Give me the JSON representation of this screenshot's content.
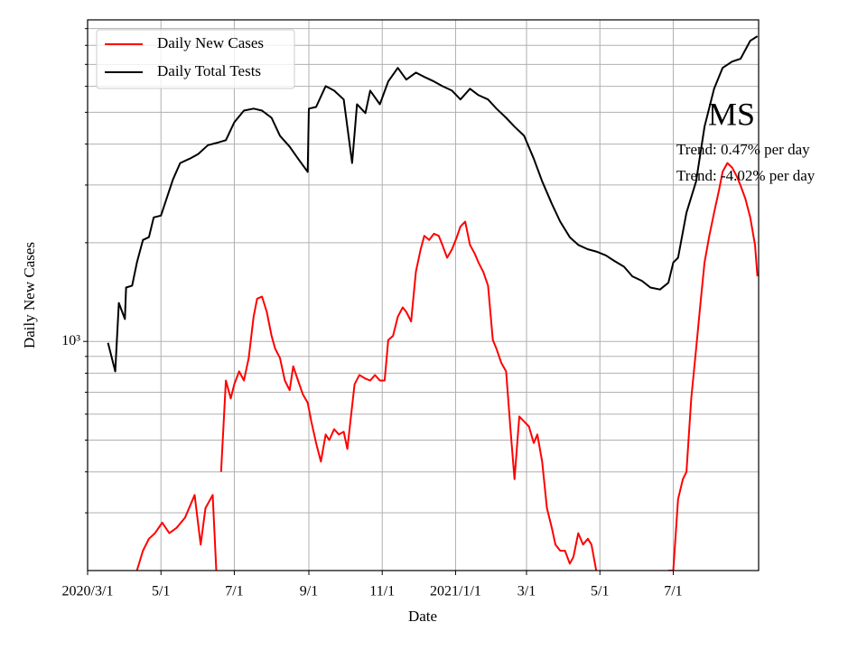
{
  "chart_data": {
    "type": "line",
    "title": "MS",
    "annotations": [
      "Trend: 0.47% per day",
      "Trend: -4.02% per day"
    ],
    "x_label": "Date",
    "y_label": "Daily New Cases",
    "log_y": true,
    "grid": true,
    "legend": "upper left",
    "xlim": [
      0,
      558
    ],
    "xticks": [
      {
        "value": 0,
        "label": "2020/3/1"
      },
      {
        "value": 61,
        "label": "5/1"
      },
      {
        "value": 122,
        "label": "7/1"
      },
      {
        "value": 184,
        "label": "9/1"
      },
      {
        "value": 245,
        "label": "11/1"
      },
      {
        "value": 306,
        "label": "2021/1/1"
      },
      {
        "value": 365,
        "label": "3/1"
      },
      {
        "value": 426,
        "label": "5/1"
      },
      {
        "value": 487,
        "label": "7/1"
      }
    ],
    "ylim": [
      200,
      9570
    ],
    "yticks": [
      {
        "value": 1000,
        "label": "10³"
      }
    ],
    "y_minor_ticks": [
      300,
      400,
      500,
      600,
      700,
      800,
      900,
      2000,
      3000,
      4000,
      5000,
      6000,
      7000,
      8000,
      9000
    ],
    "series": [
      {
        "name": "Daily New Cases",
        "color": "#ff0000",
        "x": [
          41,
          46,
          51,
          56,
          62,
          68,
          74,
          81,
          89,
          94,
          98,
          104,
          107,
          112,
          111,
          115,
          119,
          122,
          126,
          130,
          134,
          138,
          141,
          145,
          149,
          153,
          156,
          160,
          164,
          168,
          171,
          175,
          179,
          183,
          186,
          190,
          194,
          198,
          201,
          205,
          209,
          213,
          216,
          219,
          222,
          226,
          231,
          235,
          239,
          243,
          247,
          250,
          254,
          258,
          262,
          265,
          269,
          273,
          277,
          280,
          284,
          288,
          292,
          295,
          299,
          303,
          307,
          310,
          314,
          318,
          322,
          325,
          329,
          333,
          337,
          340,
          344,
          348,
          352,
          355,
          359,
          363,
          367,
          371,
          374,
          378,
          382,
          386,
          389,
          393,
          397,
          401,
          404,
          408,
          412,
          416,
          419,
          423,
          450,
          483,
          487,
          491,
          495,
          498,
          502,
          506,
          510,
          513,
          517,
          521,
          525,
          528,
          532,
          536,
          540,
          543,
          547,
          551,
          555,
          557
        ],
        "values": [
          200,
          230,
          250,
          260,
          280,
          260,
          270,
          290,
          340,
          240,
          310,
          340,
          200,
          null,
          400,
          760,
          670,
          740,
          810,
          760,
          890,
          1190,
          1350,
          1370,
          1230,
          1040,
          950,
          890,
          760,
          710,
          840,
          760,
          690,
          650,
          570,
          490,
          430,
          520,
          500,
          540,
          520,
          530,
          470,
          590,
          740,
          790,
          770,
          760,
          790,
          760,
          760,
          1010,
          1040,
          1190,
          1270,
          1230,
          1150,
          1630,
          1910,
          2100,
          2040,
          2130,
          2100,
          1970,
          1800,
          1910,
          2080,
          2240,
          2320,
          1970,
          1850,
          1740,
          1630,
          1480,
          1010,
          950,
          860,
          810,
          520,
          380,
          590,
          570,
          550,
          490,
          520,
          430,
          310,
          270,
          240,
          230,
          230,
          210,
          220,
          260,
          240,
          250,
          240,
          200,
          null,
          200,
          200,
          330,
          380,
          400,
          670,
          950,
          1350,
          1740,
          2100,
          2470,
          2890,
          3290,
          3500,
          3390,
          3180,
          2990,
          2720,
          2390,
          1970,
          1580
        ]
      },
      {
        "name": "Daily Total Tests",
        "color": "#000000",
        "x": [
          17,
          23,
          26,
          31,
          32,
          37,
          41,
          46,
          51,
          55,
          61,
          66,
          71,
          77,
          85,
          92,
          100,
          107,
          115,
          122,
          130,
          138,
          145,
          153,
          160,
          168,
          175,
          183,
          184,
          190,
          198,
          205,
          213,
          220,
          224,
          231,
          235,
          243,
          250,
          258,
          265,
          273,
          280,
          288,
          295,
          303,
          310,
          318,
          325,
          333,
          340,
          348,
          355,
          363,
          371,
          378,
          386,
          393,
          401,
          408,
          416,
          423,
          431,
          438,
          446,
          453,
          461,
          468,
          476,
          483,
          487,
          491,
          498,
          506,
          513,
          521,
          528,
          536,
          543,
          551,
          557
        ],
        "values": [
          990,
          810,
          1310,
          1170,
          1460,
          1480,
          1740,
          2040,
          2080,
          2390,
          2420,
          2750,
          3120,
          3500,
          3610,
          3730,
          3970,
          4030,
          4110,
          4660,
          5060,
          5130,
          5060,
          4810,
          4240,
          3930,
          3610,
          3290,
          5130,
          5190,
          6010,
          5820,
          5470,
          3500,
          5290,
          4970,
          5820,
          5290,
          6210,
          6830,
          6290,
          6610,
          6410,
          6210,
          6010,
          5820,
          5470,
          5900,
          5640,
          5470,
          5130,
          4810,
          4520,
          4240,
          3610,
          3080,
          2630,
          2320,
          2080,
          1970,
          1910,
          1880,
          1830,
          1760,
          1690,
          1580,
          1530,
          1460,
          1440,
          1510,
          1740,
          1800,
          2470,
          3080,
          4520,
          5900,
          6830,
          7140,
          7280,
          8260,
          8530
        ]
      }
    ]
  }
}
